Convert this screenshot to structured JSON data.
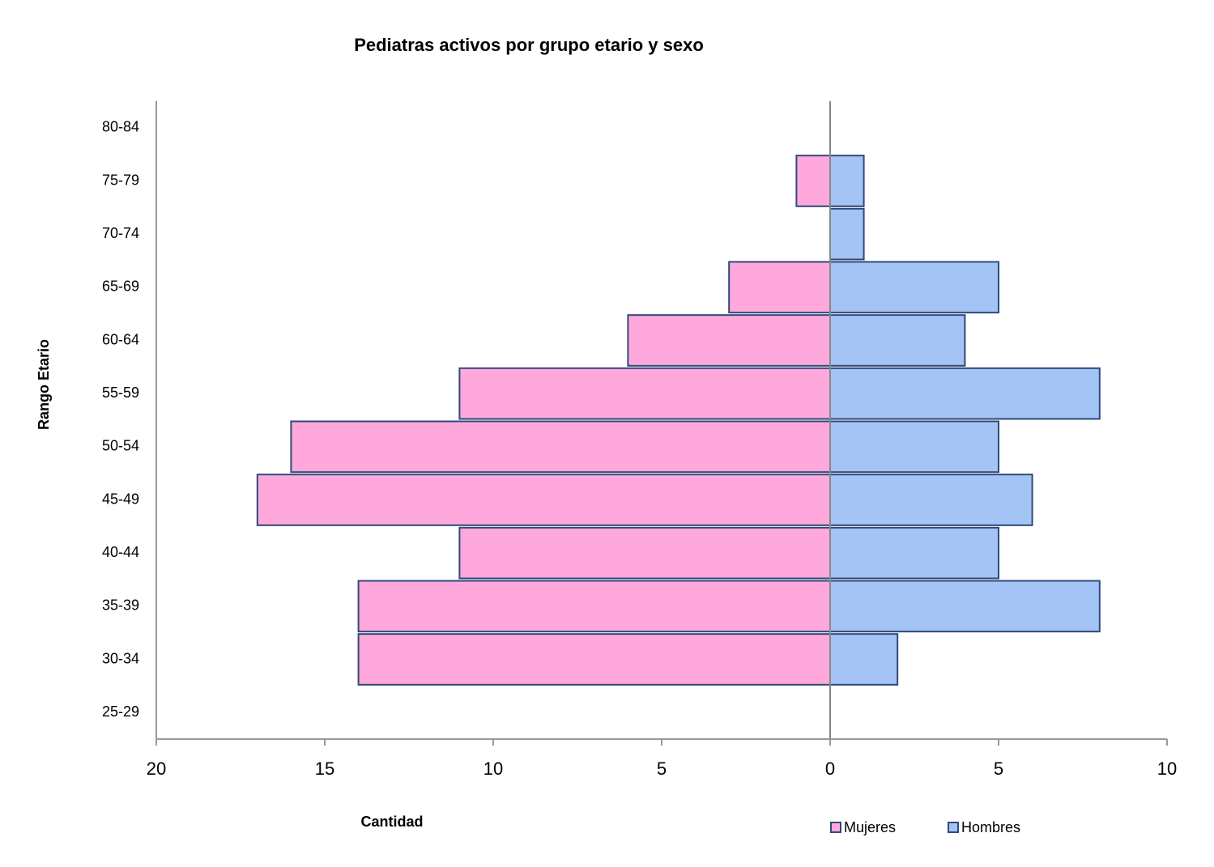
{
  "chart_data": {
    "type": "pyramid",
    "title": "Pediatras activos por grupo etario y sexo",
    "x_label": "Cantidad",
    "y_label": "Rango Etario",
    "categories": [
      "80-84",
      "75-79",
      "70-74",
      "65-69",
      "60-64",
      "55-59",
      "50-54",
      "45-49",
      "40-44",
      "35-39",
      "30-34",
      "25-29"
    ],
    "series": [
      {
        "name": "Mujeres",
        "color": "#ffa8dc",
        "values": [
          0,
          -1,
          0,
          -3,
          -6,
          -11,
          -16,
          -17,
          -11,
          -14,
          -14,
          0
        ]
      },
      {
        "name": "Hombres",
        "color": "#a3c4f4",
        "values": [
          0,
          1,
          1,
          5,
          4,
          8,
          5,
          6,
          5,
          8,
          2,
          0
        ]
      }
    ],
    "xlim": [
      -20,
      10
    ],
    "xticks": [
      {
        "value": -20,
        "label": "20"
      },
      {
        "value": -15,
        "label": "15"
      },
      {
        "value": -10,
        "label": "10"
      },
      {
        "value": -5,
        "label": "5"
      },
      0,
      5,
      10
    ],
    "legend": "bottom"
  }
}
